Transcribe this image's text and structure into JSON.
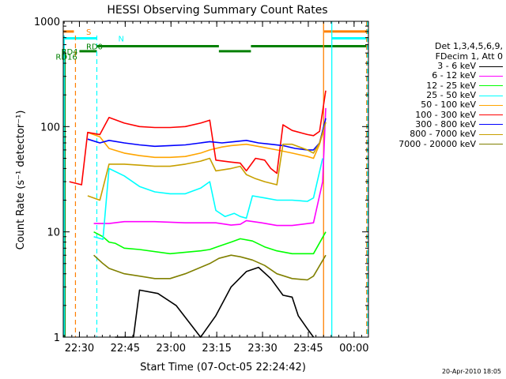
{
  "chart_data": {
    "type": "line",
    "title": "HESSI Observing Summary Count Rates",
    "xlabel": "Start Time (07-Oct-05 22:24:42)",
    "ylabel": "Count Rate (s⁻¹ detector⁻¹)",
    "yscale": "log",
    "ylim": [
      1,
      1000
    ],
    "xlim_minutes_after_start": [
      0,
      100
    ],
    "x_ticks": [
      "22:30",
      "22:45",
      "23:00",
      "23:15",
      "23:30",
      "23:45",
      "00:00"
    ],
    "y_ticks": [
      "1",
      "10",
      "100",
      "1000"
    ],
    "legend_header": [
      "Det 1,3,4,5,6,9,",
      "FDecim 1, Att 0"
    ],
    "series": [
      {
        "name": "3 - 6 keV",
        "color": "#000000",
        "points": [
          [
            17,
            1
          ],
          [
            23,
            1
          ],
          [
            25,
            2.8
          ],
          [
            31,
            2.6
          ],
          [
            37,
            2
          ],
          [
            45,
            1.0
          ],
          [
            50,
            1.6
          ],
          [
            55,
            3
          ],
          [
            60,
            4.2
          ],
          [
            64,
            4.6
          ],
          [
            68,
            3.6
          ],
          [
            72,
            2.5
          ],
          [
            75,
            2.4
          ],
          [
            77,
            1.6
          ],
          [
            80,
            1.2
          ],
          [
            82,
            1.0
          ]
        ]
      },
      {
        "name": "6 - 12 keV",
        "color": "#ff00ff",
        "points": [
          [
            10,
            12
          ],
          [
            15,
            12
          ],
          [
            20,
            12.5
          ],
          [
            25,
            12.5
          ],
          [
            30,
            12.5
          ],
          [
            40,
            12.2
          ],
          [
            50,
            12.2
          ],
          [
            55,
            11.6
          ],
          [
            58,
            11.8
          ],
          [
            60,
            12.8
          ],
          [
            65,
            12.2
          ],
          [
            70,
            11.5
          ],
          [
            75,
            11.5
          ],
          [
            82,
            12.2
          ],
          [
            85,
            30
          ],
          [
            86,
            150
          ]
        ]
      },
      {
        "name": "12 - 25 keV",
        "color": "#00ff00",
        "points": [
          [
            10,
            10
          ],
          [
            13,
            9
          ],
          [
            15,
            8
          ],
          [
            17,
            7.8
          ],
          [
            20,
            7.0
          ],
          [
            25,
            6.8
          ],
          [
            35,
            6.2
          ],
          [
            45,
            6.6
          ],
          [
            48,
            6.8
          ],
          [
            51,
            7.3
          ],
          [
            55,
            8.0
          ],
          [
            58,
            8.6
          ],
          [
            62,
            8.2
          ],
          [
            66,
            7.2
          ],
          [
            70,
            6.6
          ],
          [
            75,
            6.2
          ],
          [
            82,
            6.2
          ],
          [
            86,
            10
          ]
        ]
      },
      {
        "name": "25 - 50 keV",
        "color": "#00ffff",
        "points": [
          [
            10,
            9
          ],
          [
            13,
            8.5
          ],
          [
            15,
            40
          ],
          [
            20,
            34
          ],
          [
            25,
            27
          ],
          [
            30,
            24
          ],
          [
            35,
            23
          ],
          [
            40,
            23
          ],
          [
            45,
            26
          ],
          [
            48,
            30
          ],
          [
            50,
            16
          ],
          [
            53,
            14
          ],
          [
            56,
            15
          ],
          [
            58,
            14
          ],
          [
            60,
            13.5
          ],
          [
            62,
            22
          ],
          [
            66,
            21
          ],
          [
            70,
            20
          ],
          [
            75,
            20
          ],
          [
            80,
            19.5
          ],
          [
            82,
            21
          ],
          [
            85,
            50
          ]
        ]
      },
      {
        "name": "50 - 100 keV",
        "color": "#ffa500",
        "points": [
          [
            8,
            88
          ],
          [
            12,
            80
          ],
          [
            15,
            62
          ],
          [
            20,
            56
          ],
          [
            25,
            53
          ],
          [
            30,
            51
          ],
          [
            35,
            51
          ],
          [
            40,
            52
          ],
          [
            45,
            56
          ],
          [
            48,
            60
          ],
          [
            52,
            64
          ],
          [
            55,
            66
          ],
          [
            60,
            68
          ],
          [
            65,
            64
          ],
          [
            70,
            60
          ],
          [
            75,
            56
          ],
          [
            80,
            52
          ],
          [
            82,
            50
          ],
          [
            84,
            68
          ],
          [
            86,
            110
          ]
        ]
      },
      {
        "name": "100 - 300 keV",
        "color": "#ff0000",
        "points": [
          [
            2,
            30
          ],
          [
            6,
            28
          ],
          [
            8,
            88
          ],
          [
            12,
            84
          ],
          [
            15,
            122
          ],
          [
            20,
            108
          ],
          [
            25,
            100
          ],
          [
            30,
            98
          ],
          [
            35,
            98
          ],
          [
            40,
            100
          ],
          [
            45,
            108
          ],
          [
            48,
            115
          ],
          [
            50,
            48
          ],
          [
            55,
            46
          ],
          [
            58,
            45
          ],
          [
            60,
            38
          ],
          [
            63,
            50
          ],
          [
            66,
            48
          ],
          [
            68,
            40
          ],
          [
            70,
            36
          ],
          [
            72,
            104
          ],
          [
            75,
            92
          ],
          [
            80,
            84
          ],
          [
            82,
            82
          ],
          [
            84,
            90
          ],
          [
            86,
            220
          ]
        ]
      },
      {
        "name": "300 - 800 keV",
        "color": "#0000ff",
        "points": [
          [
            8,
            76
          ],
          [
            12,
            70
          ],
          [
            15,
            74
          ],
          [
            20,
            70
          ],
          [
            25,
            67
          ],
          [
            30,
            65
          ],
          [
            35,
            66
          ],
          [
            40,
            67
          ],
          [
            45,
            70
          ],
          [
            48,
            72
          ],
          [
            52,
            70
          ],
          [
            56,
            72
          ],
          [
            60,
            74
          ],
          [
            64,
            70
          ],
          [
            68,
            68
          ],
          [
            72,
            66
          ],
          [
            76,
            62
          ],
          [
            80,
            60
          ],
          [
            82,
            60
          ],
          [
            84,
            70
          ],
          [
            86,
            120
          ]
        ]
      },
      {
        "name": "800 - 7000 keV",
        "color": "#c8a000",
        "points": [
          [
            8,
            22
          ],
          [
            12,
            20
          ],
          [
            15,
            44
          ],
          [
            20,
            44
          ],
          [
            25,
            43
          ],
          [
            30,
            42
          ],
          [
            35,
            42
          ],
          [
            40,
            44
          ],
          [
            45,
            47
          ],
          [
            48,
            50
          ],
          [
            50,
            38
          ],
          [
            55,
            40
          ],
          [
            58,
            42
          ],
          [
            60,
            35
          ],
          [
            63,
            32
          ],
          [
            66,
            30
          ],
          [
            70,
            28
          ],
          [
            72,
            68
          ],
          [
            75,
            68
          ],
          [
            80,
            60
          ],
          [
            82,
            56
          ],
          [
            84,
            70
          ],
          [
            86,
            110
          ]
        ]
      },
      {
        "name": "7000 - 20000 keV",
        "color": "#808000",
        "points": [
          [
            10,
            6
          ],
          [
            13,
            5
          ],
          [
            15,
            4.5
          ],
          [
            20,
            4.0
          ],
          [
            25,
            3.8
          ],
          [
            30,
            3.6
          ],
          [
            35,
            3.6
          ],
          [
            40,
            4.0
          ],
          [
            45,
            4.6
          ],
          [
            48,
            5.0
          ],
          [
            51,
            5.6
          ],
          [
            55,
            6.0
          ],
          [
            58,
            5.8
          ],
          [
            62,
            5.4
          ],
          [
            66,
            4.8
          ],
          [
            70,
            4.0
          ],
          [
            75,
            3.6
          ],
          [
            80,
            3.5
          ],
          [
            82,
            3.8
          ],
          [
            86,
            6
          ]
        ]
      }
    ],
    "flags": [
      {
        "label": "S",
        "color": "#ff8000"
      },
      {
        "label": "N",
        "color": "#00ffff"
      },
      {
        "label": "RD0",
        "color": "#008000"
      },
      {
        "label": "RD4",
        "color": "#008000"
      },
      {
        "label": "RD16",
        "color": "#008000"
      }
    ]
  },
  "timestamp": "20-Apr-2010 18:05"
}
